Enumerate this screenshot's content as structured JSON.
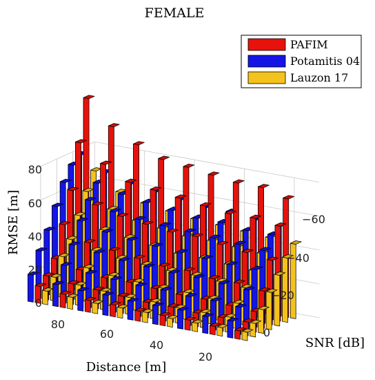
{
  "chart_data": {
    "type": "bar3d",
    "title": "FEMALE",
    "xlabel": "Distance [m]",
    "ylabel": "SNR [dB]",
    "zlabel": "RMSE [m]",
    "distance_categories": [
      90,
      80,
      70,
      60,
      50,
      40,
      30,
      20,
      10
    ],
    "snr_categories": [
      0,
      -10,
      -20,
      -30,
      -40,
      -50,
      -60
    ],
    "distance_ticks": [
      "80",
      "60",
      "40",
      "20"
    ],
    "snr_ticks": [
      "0",
      "−20",
      "−40",
      "−60"
    ],
    "rmse_ticks": [
      "0",
      "20",
      "40",
      "60",
      "80"
    ],
    "zlim": [
      0,
      80
    ],
    "grid": true,
    "legend_position": "top-right",
    "colors": {
      "PAFIM": "#e8120c",
      "Potamitis 04": "#1515e6",
      "Lauzon 17": "#f4c21c"
    },
    "series": [
      {
        "name": "PAFIM",
        "values": [
          [
            10,
            14,
            22,
            40,
            58,
            84,
            108
          ],
          [
            8,
            12,
            18,
            32,
            52,
            74,
            94
          ],
          [
            7,
            11,
            16,
            30,
            48,
            66,
            86
          ],
          [
            7,
            10,
            16,
            28,
            46,
            64,
            80
          ],
          [
            6,
            9,
            15,
            26,
            44,
            62,
            78
          ],
          [
            6,
            9,
            14,
            26,
            44,
            60,
            76
          ],
          [
            6,
            8,
            14,
            24,
            42,
            58,
            74
          ],
          [
            5,
            8,
            13,
            24,
            40,
            58,
            74
          ],
          [
            5,
            8,
            12,
            22,
            38,
            56,
            70
          ]
        ]
      },
      {
        "name": "Potamitis 04",
        "values": [
          [
            16,
            28,
            38,
            50,
            62,
            70,
            74
          ],
          [
            13,
            22,
            32,
            44,
            54,
            62,
            66
          ],
          [
            12,
            20,
            30,
            40,
            50,
            58,
            62
          ],
          [
            12,
            19,
            28,
            38,
            48,
            56,
            60
          ],
          [
            11,
            18,
            27,
            37,
            47,
            54,
            58
          ],
          [
            11,
            18,
            26,
            36,
            46,
            52,
            56
          ],
          [
            11,
            17,
            26,
            35,
            45,
            52,
            56
          ],
          [
            10,
            17,
            25,
            34,
            44,
            50,
            54
          ],
          [
            10,
            16,
            24,
            34,
            43,
            50,
            53
          ]
        ]
      },
      {
        "name": "Lauzon 17",
        "values": [
          [
            8,
            14,
            24,
            32,
            44,
            56,
            66
          ],
          [
            7,
            12,
            20,
            28,
            38,
            48,
            56
          ],
          [
            6,
            11,
            18,
            26,
            36,
            44,
            52
          ],
          [
            6,
            10,
            17,
            25,
            34,
            42,
            50
          ],
          [
            6,
            10,
            16,
            24,
            32,
            40,
            48
          ],
          [
            5,
            9,
            16,
            24,
            32,
            40,
            47
          ],
          [
            5,
            9,
            15,
            23,
            31,
            39,
            46
          ],
          [
            5,
            9,
            15,
            22,
            30,
            38,
            45
          ],
          [
            5,
            8,
            14,
            22,
            30,
            38,
            44
          ]
        ]
      }
    ]
  }
}
